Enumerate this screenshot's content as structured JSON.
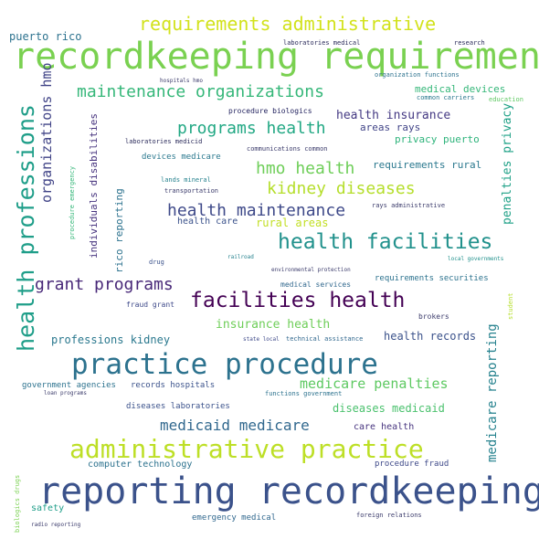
{
  "word_cloud": {
    "words": [
      {
        "text": "recordkeeping requirements",
        "color": "#7ad151"
      },
      {
        "text": "reporting recordkeeping",
        "color": "#3b528b"
      },
      {
        "text": "practice procedure",
        "color": "#2c728e"
      },
      {
        "text": "administrative practice",
        "color": "#bddf26"
      },
      {
        "text": "health professions",
        "color": "#1f9e89"
      },
      {
        "text": "health facilities",
        "color": "#21918c"
      },
      {
        "text": "facilities health",
        "color": "#440154"
      },
      {
        "text": "requirements administrative",
        "color": "#d2e21b"
      },
      {
        "text": "maintenance organizations",
        "color": "#35b779"
      },
      {
        "text": "programs health",
        "color": "#22a884"
      },
      {
        "text": "health maintenance",
        "color": "#3e4989"
      },
      {
        "text": "kidney diseases",
        "color": "#b5de2b"
      },
      {
        "text": "hmo health",
        "color": "#6ece58"
      },
      {
        "text": "grant programs",
        "color": "#482878"
      },
      {
        "text": "medicaid medicare",
        "color": "#31688e"
      },
      {
        "text": "medicare penalties",
        "color": "#5ec962"
      },
      {
        "text": "organizations hmo",
        "color": "#414487"
      },
      {
        "text": "medicare reporting",
        "color": "#26828e"
      },
      {
        "text": "penalties privacy",
        "color": "#1fa187"
      },
      {
        "text": "health insurance",
        "color": "#443983"
      },
      {
        "text": "insurance health",
        "color": "#6ece58"
      },
      {
        "text": "professions kidney",
        "color": "#2a788e"
      },
      {
        "text": "diseases medicaid",
        "color": "#4ac16d"
      },
      {
        "text": "health records",
        "color": "#3b528b"
      },
      {
        "text": "rural areas",
        "color": "#c2df23"
      },
      {
        "text": "medical devices",
        "color": "#35b779"
      },
      {
        "text": "requirements rural",
        "color": "#2a788e"
      },
      {
        "text": "areas rays",
        "color": "#414487"
      },
      {
        "text": "privacy puerto",
        "color": "#2fb47c"
      },
      {
        "text": "individuals disabilities",
        "color": "#46337e"
      },
      {
        "text": "rico reporting",
        "color": "#2c728e"
      },
      {
        "text": "puerto rico",
        "color": "#2c728e"
      },
      {
        "text": "care health",
        "color": "#46337e"
      },
      {
        "text": "computer technology",
        "color": "#2c728e"
      },
      {
        "text": "procedure fraud",
        "color": "#3e4989"
      },
      {
        "text": "emergency medical",
        "color": "#31688e"
      },
      {
        "text": "safety",
        "color": "#1f9e89"
      },
      {
        "text": "health care",
        "color": "#3b528b"
      },
      {
        "text": "devices medicare",
        "color": "#2a788e"
      },
      {
        "text": "records hospitals",
        "color": "#3b528b"
      },
      {
        "text": "diseases laboratories",
        "color": "#3b528b"
      },
      {
        "text": "government agencies",
        "color": "#2c728e"
      },
      {
        "text": "procedure biologics",
        "color": "#1f1f5c"
      },
      {
        "text": "laboratories medical",
        "color": "#2a2a5a"
      },
      {
        "text": "laboratories medicid",
        "color": "#2a2a5a"
      },
      {
        "text": "communications common",
        "color": "#3b3b6b"
      },
      {
        "text": "organization functions",
        "color": "#2c728e"
      },
      {
        "text": "common carriers",
        "color": "#2a788e"
      },
      {
        "text": "education",
        "color": "#5ec962"
      },
      {
        "text": "research",
        "color": "#2a2a5a"
      },
      {
        "text": "lands mineral",
        "color": "#26828e"
      },
      {
        "text": "transportation",
        "color": "#3b3b6b"
      },
      {
        "text": "rays administrative",
        "color": "#3b3b6b"
      },
      {
        "text": "drug",
        "color": "#3b528b"
      },
      {
        "text": "railroad",
        "color": "#26828e"
      },
      {
        "text": "local governments",
        "color": "#21918c"
      },
      {
        "text": "environmental protection",
        "color": "#3b3b6b"
      },
      {
        "text": "requirements securities",
        "color": "#2c728e"
      },
      {
        "text": "medical services",
        "color": "#31688e"
      },
      {
        "text": "fraud grant",
        "color": "#3e4989"
      },
      {
        "text": "brokers",
        "color": "#3b3b6b"
      },
      {
        "text": "student",
        "color": "#b5de2b"
      },
      {
        "text": "state local",
        "color": "#3e4989"
      },
      {
        "text": "technical assistance",
        "color": "#31688e"
      },
      {
        "text": "functions government",
        "color": "#2c728e"
      },
      {
        "text": "loan programs",
        "color": "#3b3b6b"
      },
      {
        "text": "foreign relations",
        "color": "#3b3b6b"
      },
      {
        "text": "radio reporting",
        "color": "#3b3b6b"
      },
      {
        "text": "biologics drugs",
        "color": "#7ad151"
      },
      {
        "text": "procedure emergency",
        "color": "#35b779"
      },
      {
        "text": "hospitals hmo",
        "color": "#3b3b6b"
      }
    ]
  }
}
